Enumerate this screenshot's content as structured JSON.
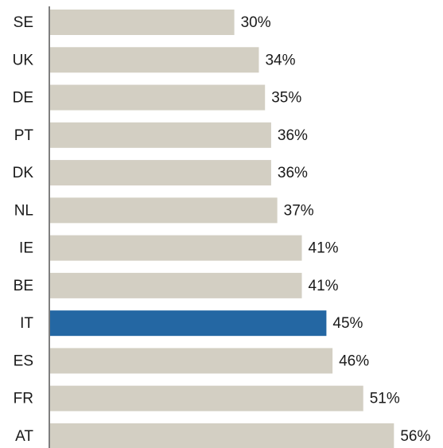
{
  "chart_data": {
    "type": "hbar",
    "categories": [
      "SE",
      "UK",
      "DE",
      "PT",
      "DK",
      "NL",
      "IE",
      "BE",
      "IT",
      "ES",
      "FR",
      "AT"
    ],
    "values": [
      30,
      34,
      35,
      36,
      36,
      37,
      41,
      41,
      45,
      46,
      51,
      56
    ],
    "value_labels": [
      "30%",
      "34%",
      "35%",
      "36%",
      "36%",
      "37%",
      "41%",
      "41%",
      "45%",
      "46%",
      "51%",
      "56%"
    ],
    "colors": [
      "#d3cfc3",
      "#d3cfc3",
      "#d3cfc3",
      "#d3cfc3",
      "#d3cfc3",
      "#d3cfc3",
      "#d3cfc3",
      "#d3cfc3",
      "#2467a3",
      "#d3cfc3",
      "#d3cfc3",
      "#d3cfc3"
    ]
  }
}
